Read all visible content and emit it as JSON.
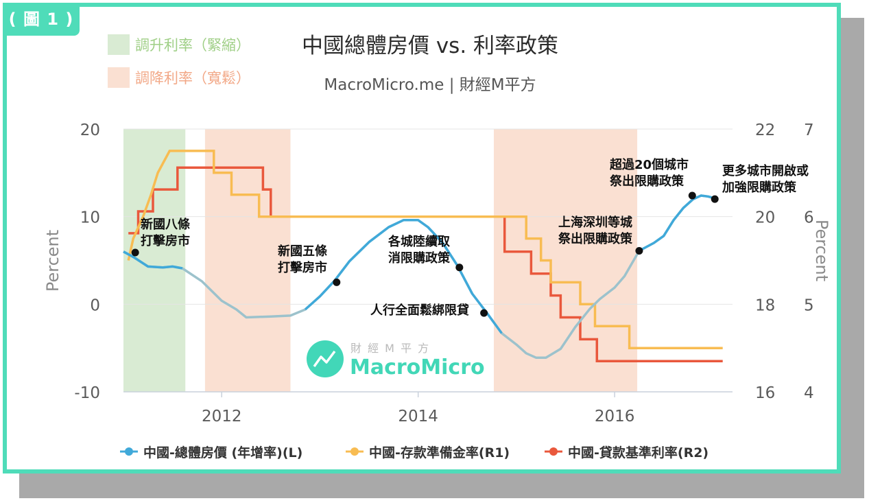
{
  "figure_tag": "( 圖 1 )",
  "title": "中國總體房價 vs. 利率政策",
  "subtitle": "MacroMicro.me | 財經M平方",
  "watermark": {
    "top": "財 經 M 平 方",
    "brand": "MacroMicro"
  },
  "band_legend": [
    {
      "label": "調升利率（緊縮）",
      "color": "#d9ebd3",
      "text_color": "#9fcf86"
    },
    {
      "label": "調降利率（寬鬆）",
      "color": "#fae0d2",
      "text_color": "#f2a887"
    }
  ],
  "colors": {
    "price": "#40a9d9",
    "price_faded": "#9cc2cc",
    "rrr": "#f8bc52",
    "lpr": "#e9583c",
    "tightening": "#d9ebd3",
    "easing": "#fae0d2",
    "frame": "#4fdcb9"
  },
  "chart_data": {
    "type": "line",
    "title": "中國總體房價 vs. 利率政策",
    "subtitle": "MacroMicro.me | 財經M平方",
    "ylabel_left": "Percent",
    "ylabel_right": "Percent",
    "xlim": [
      2011.0,
      2017.2
    ],
    "x_ticks": [
      2012,
      2014,
      2016
    ],
    "x_tick_labels": [
      "2012",
      "2014",
      "2016"
    ],
    "ylim_left": [
      -10,
      20
    ],
    "y_ticks_left": [
      -10,
      0,
      10,
      20
    ],
    "y_tick_labels_left": [
      "-10",
      "0",
      "10",
      "20"
    ],
    "ylim_r1": [
      16,
      22
    ],
    "y_ticks_r1": [
      16,
      18,
      20,
      22
    ],
    "y_tick_labels_r1": [
      "16",
      "18",
      "20",
      "22"
    ],
    "ylim_r2": [
      4,
      7
    ],
    "y_ticks_r2": [
      4,
      5,
      6,
      7
    ],
    "y_tick_labels_r2": [
      "4",
      "5",
      "6",
      "7"
    ],
    "grid": true,
    "legend": "bottom",
    "policy_bands": [
      {
        "type": "tightening",
        "start": 2011.0,
        "end": 2011.63
      },
      {
        "type": "easing",
        "start": 2011.83,
        "end": 2012.7
      },
      {
        "type": "easing",
        "start": 2014.77,
        "end": 2016.23
      }
    ],
    "series": [
      {
        "name": "中國-總體房價 (年增率)(L)",
        "axis": "left",
        "points": [
          [
            2011.0,
            6.0
          ],
          [
            2011.1,
            5.4
          ],
          [
            2011.25,
            4.3
          ],
          [
            2011.4,
            4.2
          ],
          [
            2011.5,
            4.3
          ],
          [
            2011.6,
            4.1
          ],
          [
            2011.8,
            2.6
          ],
          [
            2012.0,
            0.4
          ],
          [
            2012.15,
            -0.6
          ],
          [
            2012.25,
            -1.5
          ],
          [
            2012.5,
            -1.4
          ],
          [
            2012.7,
            -1.3
          ],
          [
            2012.85,
            -0.6
          ],
          [
            2013.0,
            0.9
          ],
          [
            2013.15,
            2.7
          ],
          [
            2013.3,
            4.9
          ],
          [
            2013.5,
            7.1
          ],
          [
            2013.7,
            8.8
          ],
          [
            2013.85,
            9.6
          ],
          [
            2014.0,
            9.6
          ],
          [
            2014.1,
            8.8
          ],
          [
            2014.25,
            7.0
          ],
          [
            2014.4,
            4.4
          ],
          [
            2014.55,
            1.2
          ],
          [
            2014.7,
            -1.0
          ],
          [
            2014.85,
            -3.3
          ],
          [
            2015.0,
            -4.6
          ],
          [
            2015.1,
            -5.6
          ],
          [
            2015.2,
            -6.1
          ],
          [
            2015.3,
            -6.1
          ],
          [
            2015.45,
            -5.1
          ],
          [
            2015.6,
            -2.6
          ],
          [
            2015.75,
            -0.5
          ],
          [
            2015.85,
            0.6
          ],
          [
            2016.0,
            1.9
          ],
          [
            2016.1,
            3.2
          ],
          [
            2016.25,
            6.1
          ],
          [
            2016.4,
            7.0
          ],
          [
            2016.5,
            7.8
          ],
          [
            2016.6,
            9.6
          ],
          [
            2016.7,
            11.0
          ],
          [
            2016.8,
            12.0
          ],
          [
            2016.88,
            12.4
          ],
          [
            2016.95,
            12.3
          ],
          [
            2017.05,
            12.0
          ]
        ]
      },
      {
        "name": "中國-存款準備金率(R1)",
        "axis": "r1",
        "points": [
          [
            2011.05,
            19.0
          ],
          [
            2011.1,
            19.5
          ],
          [
            2011.2,
            20.0
          ],
          [
            2011.28,
            20.5
          ],
          [
            2011.35,
            21.0
          ],
          [
            2011.47,
            21.5
          ],
          [
            2011.92,
            21.5
          ],
          [
            2011.92,
            21.0
          ],
          [
            2012.1,
            21.0
          ],
          [
            2012.1,
            20.5
          ],
          [
            2012.38,
            20.5
          ],
          [
            2012.38,
            20.0
          ],
          [
            2014.85,
            20.0
          ],
          [
            2015.1,
            20.0
          ],
          [
            2015.1,
            19.5
          ],
          [
            2015.25,
            19.5
          ],
          [
            2015.25,
            19.0
          ],
          [
            2015.35,
            19.0
          ],
          [
            2015.35,
            18.5
          ],
          [
            2015.65,
            18.5
          ],
          [
            2015.65,
            18.0
          ],
          [
            2015.8,
            18.0
          ],
          [
            2015.8,
            17.5
          ],
          [
            2016.15,
            17.5
          ],
          [
            2016.15,
            17.0
          ],
          [
            2017.1,
            17.0
          ]
        ]
      },
      {
        "name": "中國-貸款基準利率(R2)",
        "axis": "r2",
        "points": [
          [
            2011.05,
            5.81
          ],
          [
            2011.15,
            5.81
          ],
          [
            2011.15,
            6.06
          ],
          [
            2011.3,
            6.06
          ],
          [
            2011.3,
            6.31
          ],
          [
            2011.55,
            6.31
          ],
          [
            2011.55,
            6.56
          ],
          [
            2012.42,
            6.56
          ],
          [
            2012.42,
            6.31
          ],
          [
            2012.5,
            6.31
          ],
          [
            2012.5,
            6.0
          ],
          [
            2014.88,
            6.0
          ],
          [
            2014.88,
            5.6
          ],
          [
            2015.15,
            5.6
          ],
          [
            2015.15,
            5.35
          ],
          [
            2015.35,
            5.35
          ],
          [
            2015.35,
            5.1
          ],
          [
            2015.45,
            5.1
          ],
          [
            2015.45,
            4.85
          ],
          [
            2015.65,
            4.85
          ],
          [
            2015.65,
            4.6
          ],
          [
            2015.82,
            4.6
          ],
          [
            2015.82,
            4.35
          ],
          [
            2017.1,
            4.35
          ]
        ]
      }
    ],
    "annotations": [
      {
        "text": [
          "新國八條",
          "打擊房市"
        ],
        "x": 2011.12,
        "y": 5.9
      },
      {
        "text": [
          "新國五條",
          "打擊房市"
        ],
        "x": 2013.17,
        "y": 2.5
      },
      {
        "text": [
          "各城陸續取",
          "消限購政策"
        ],
        "x": 2014.42,
        "y": 4.2
      },
      {
        "text": [
          "人行全面鬆綁限貸"
        ],
        "x": 2014.67,
        "y": -1.0
      },
      {
        "text": [
          "上海深圳等城",
          "祭出限購政策"
        ],
        "x": 2016.25,
        "y": 6.1
      },
      {
        "text": [
          "超過20個城市",
          "祭出限購政策"
        ],
        "x": 2016.79,
        "y": 12.4
      },
      {
        "text": [
          "更多城市開啟或",
          "加強限購政策"
        ],
        "x": 2017.02,
        "y": 12.0
      }
    ]
  },
  "legend_items": [
    {
      "label": "中國-總體房價 (年增率)(L)",
      "color": "#40a9d9"
    },
    {
      "label": "中國-存款準備金率(R1)",
      "color": "#f8bc52"
    },
    {
      "label": "中國-貸款基準利率(R2)",
      "color": "#e9583c"
    }
  ]
}
